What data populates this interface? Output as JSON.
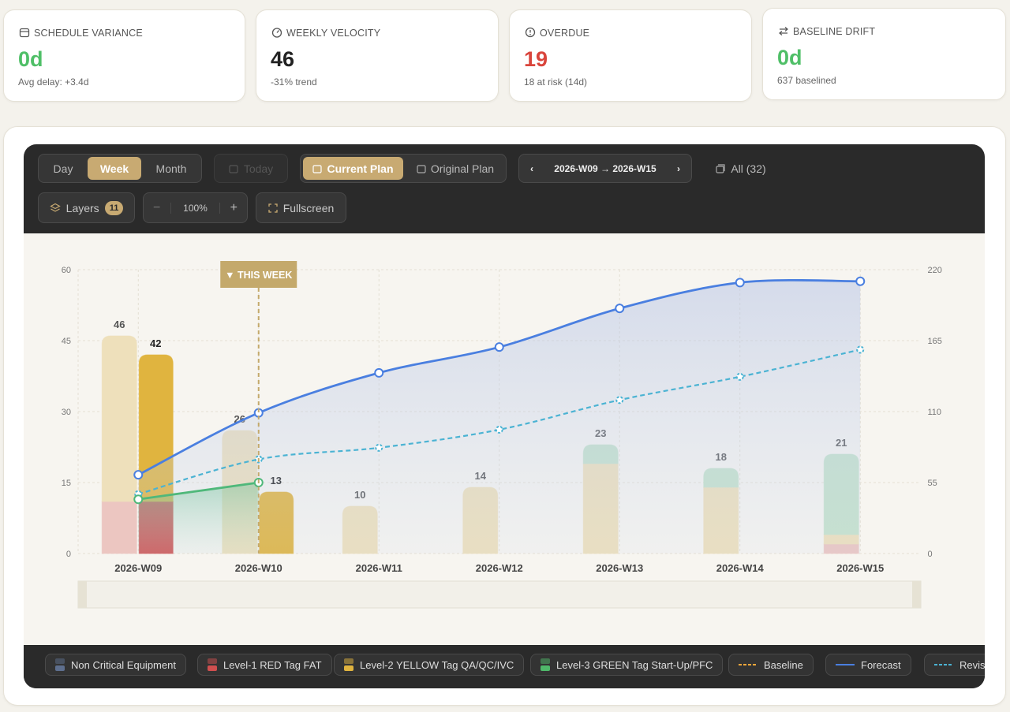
{
  "kpis": [
    {
      "label": "SCHEDULE VARIANCE",
      "value": "0d",
      "note": "Avg delay: +3.4d",
      "color": "#4fbf67"
    },
    {
      "label": "WEEKLY VELOCITY",
      "value": "46",
      "note": "-31% trend",
      "color": "#222222"
    },
    {
      "label": "OVERDUE",
      "value": "19",
      "note": "18 at risk (14d)",
      "color": "#d9453c"
    },
    {
      "label": "BASELINE DRIFT",
      "value": "0d",
      "note": "637 baselined",
      "color": "#4fbf67"
    }
  ],
  "toolbar": {
    "views": [
      "Day",
      "Week",
      "Month"
    ],
    "today": "Today",
    "plans": [
      "Current Plan",
      "Original Plan"
    ],
    "range": "2026-W09 → 2026-W15",
    "all": "All (32)",
    "layers": "Layers",
    "layers_count": "11",
    "zoom": "100%",
    "fullscreen": "Fullscreen"
  },
  "chart_data": {
    "type": "bar",
    "categories": [
      "2026-W09",
      "2026-W10",
      "2026-W11",
      "2026-W12",
      "2026-W13",
      "2026-W14",
      "2026-W15"
    ],
    "ylim": [
      0,
      60
    ],
    "yticks": [
      0,
      15,
      30,
      45,
      60
    ],
    "y2lim": [
      0,
      220
    ],
    "y2ticks": [
      0,
      55,
      110,
      165,
      220
    ],
    "grid": true,
    "annotation": "▼ THIS WEEK",
    "current_category": "2026-W10",
    "totals": [
      46,
      26,
      10,
      14,
      23,
      18,
      21
    ],
    "actual_totals": [
      42,
      13,
      null,
      null,
      null,
      null,
      null
    ],
    "series": [
      {
        "name": "Non Critical Equipment",
        "type": "bar",
        "color": "#5e6f8e",
        "values": [
          null,
          null,
          null,
          null,
          null,
          null,
          null
        ]
      },
      {
        "name": "Level-1 RED Tag FAT",
        "type": "bar",
        "color": "#d04f4f",
        "light_color": "#ecc6c1",
        "values": [
          11,
          null,
          null,
          null,
          null,
          null,
          2
        ],
        "actual_values": [
          11,
          null,
          null,
          null,
          null,
          null,
          null
        ]
      },
      {
        "name": "Level-2 YELLOW Tag QA/QC/IVC",
        "type": "bar",
        "color": "#e0b43f",
        "light_color": "#eee0bb",
        "values": [
          35,
          26,
          10,
          14,
          19,
          14,
          2
        ],
        "actual_values": [
          31,
          13,
          null,
          null,
          null,
          null,
          null
        ]
      },
      {
        "name": "Level-3 GREEN Tag Start-Up/PFC",
        "type": "bar",
        "color": "#4fb86a",
        "light_color": "#c5e2cb",
        "values": [
          null,
          null,
          null,
          null,
          4,
          4,
          17
        ],
        "actual_values": [
          null,
          null,
          null,
          null,
          null,
          null,
          null
        ]
      },
      {
        "name": "Baseline",
        "type": "line",
        "axis": "y2",
        "dashed": true,
        "color": "#f0a63a",
        "values": [
          null,
          null,
          null,
          null,
          null,
          null,
          null
        ]
      },
      {
        "name": "Forecast",
        "type": "line",
        "axis": "y2",
        "dashed": false,
        "area": true,
        "color": "#4a7fe0",
        "values": [
          61,
          109,
          140,
          160,
          190,
          210,
          211
        ]
      },
      {
        "name": "Revised",
        "type": "line",
        "axis": "y2",
        "dashed": true,
        "color": "#4bb3d3",
        "values": [
          46,
          73,
          82,
          96,
          119,
          137,
          158
        ]
      },
      {
        "type": "line",
        "axis": "y2",
        "dashed": false,
        "area": true,
        "color": "#4fb87a",
        "values": [
          42,
          55,
          null,
          null,
          null,
          null,
          null
        ]
      }
    ]
  }
}
